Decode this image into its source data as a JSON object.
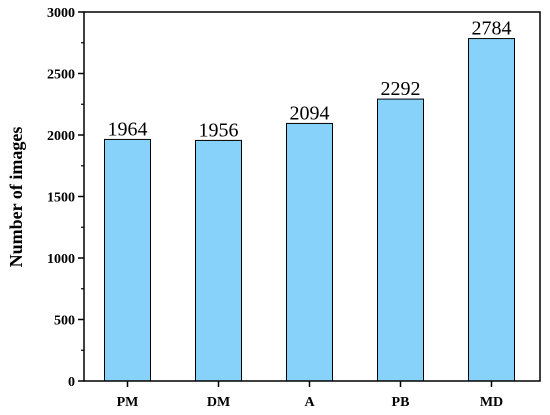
{
  "chart_data": {
    "type": "bar",
    "categories": [
      "PM",
      "DM",
      "A",
      "PB",
      "MD"
    ],
    "values": [
      1964,
      1956,
      2094,
      2292,
      2784
    ],
    "data_labels": [
      "1964",
      "1956",
      "2094",
      "2292",
      "2784"
    ],
    "xlabel": "",
    "ylabel": "Number  of  images",
    "ylim": [
      0,
      3000
    ],
    "yticks": [
      0,
      500,
      1000,
      1500,
      2000,
      2500,
      3000
    ],
    "ytick_labels": [
      "0",
      "500",
      "1000",
      "1500",
      "2000",
      "2500",
      "3000"
    ],
    "grid": false,
    "bar_color": "#87d2fa",
    "bar_edge_color": "#000000"
  }
}
